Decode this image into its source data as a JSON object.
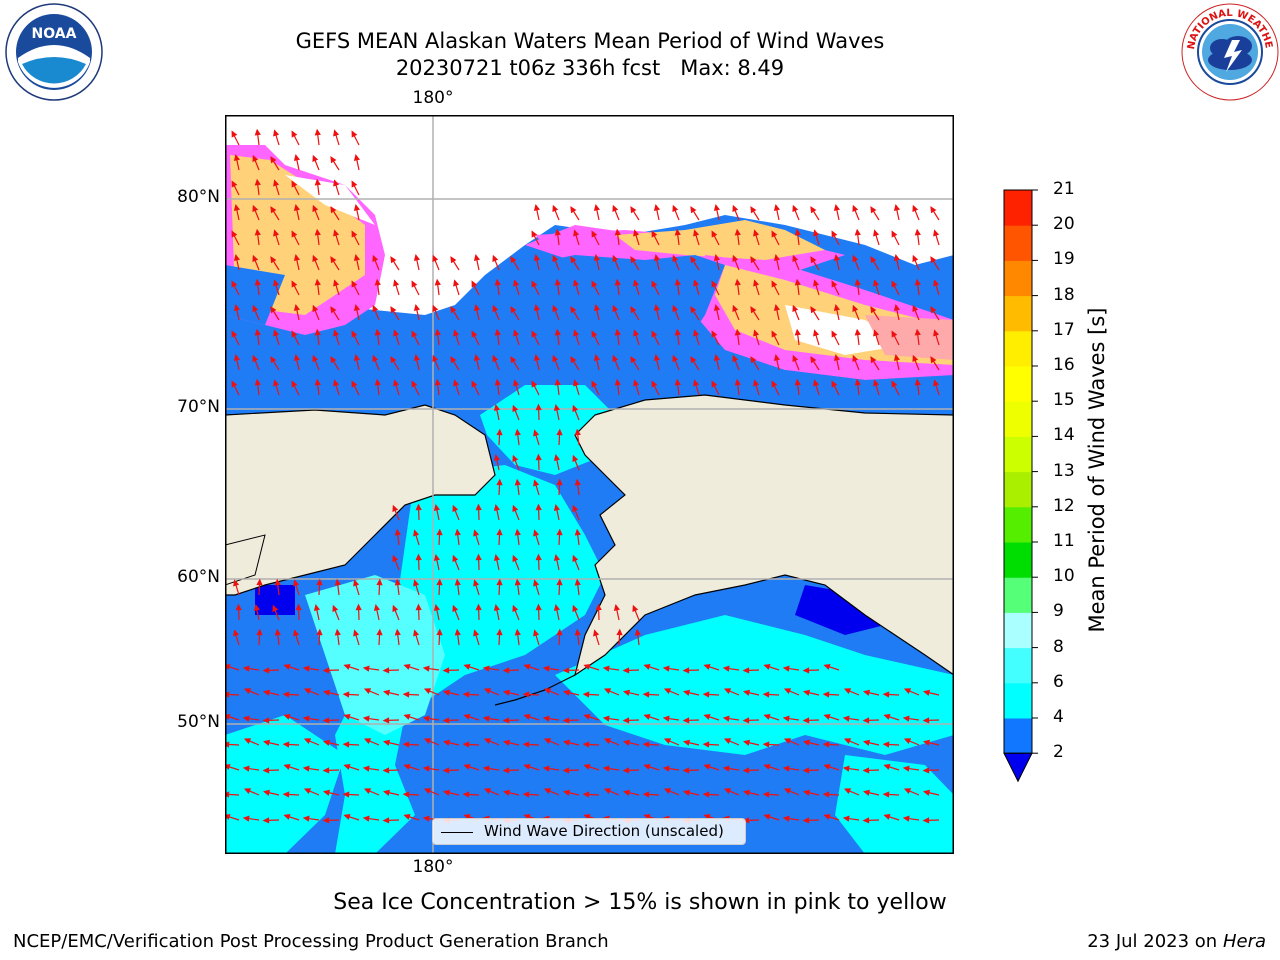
{
  "title": {
    "line1": "GEFS MEAN Alaskan Waters Mean Period of Wind Waves",
    "line2": "20230721 t06z 336h fcst   Max: 8.49"
  },
  "logos": {
    "left": {
      "name": "noaa-logo",
      "text": "NOAA",
      "ring_text": "NATIONAL OCEANIC AND ATMOSPHERIC ADMINISTRATION · U.S. DEPARTMENT OF COMMERCE"
    },
    "right": {
      "name": "nws-logo",
      "ring_text": "NATIONAL WEATHER SERVICE"
    }
  },
  "map": {
    "lon_label_top": "180°",
    "lon_label_bottom": "180°",
    "lat_labels": [
      "80°N",
      "70°N",
      "60°N",
      "50°N"
    ],
    "colors": {
      "land": "#efecdc",
      "water_dark": "#0000ee",
      "water_2_4": "#1f7cf5",
      "water_4_6": "#00ffff",
      "water_6_8": "#55ffff",
      "ice_low": "#ff66ff",
      "ice_mid": "#ffaaaa",
      "ice_high": "#ffd27a",
      "ice_yellow": "#ffff66",
      "arrow": "#ee1111",
      "grid": "#b0b0b0"
    }
  },
  "legend": {
    "label": "Wind Wave Direction (unscaled)"
  },
  "colorbar": {
    "title": "Mean Period of Wind Waves [s]",
    "ticks": [
      "2",
      "4",
      "6",
      "8",
      "9",
      "10",
      "11",
      "12",
      "13",
      "14",
      "15",
      "16",
      "17",
      "18",
      "19",
      "20",
      "21"
    ],
    "colors": [
      "#1177ff",
      "#00ffff",
      "#44ffff",
      "#aaffff",
      "#55ff77",
      "#00dd00",
      "#55ee00",
      "#aaee00",
      "#ccff00",
      "#eeff00",
      "#ffff00",
      "#ffee00",
      "#ffbb00",
      "#ff8800",
      "#ff5500",
      "#ff2200"
    ],
    "extend_color": "#0000ee"
  },
  "caption": "Sea Ice Concentration > 15% is shown in pink to yellow",
  "footer": {
    "left": "NCEP/EMC/Verification Post Processing Product Generation Branch",
    "right_prefix": "23 Jul 2023 on ",
    "right_italic": "Hera"
  }
}
